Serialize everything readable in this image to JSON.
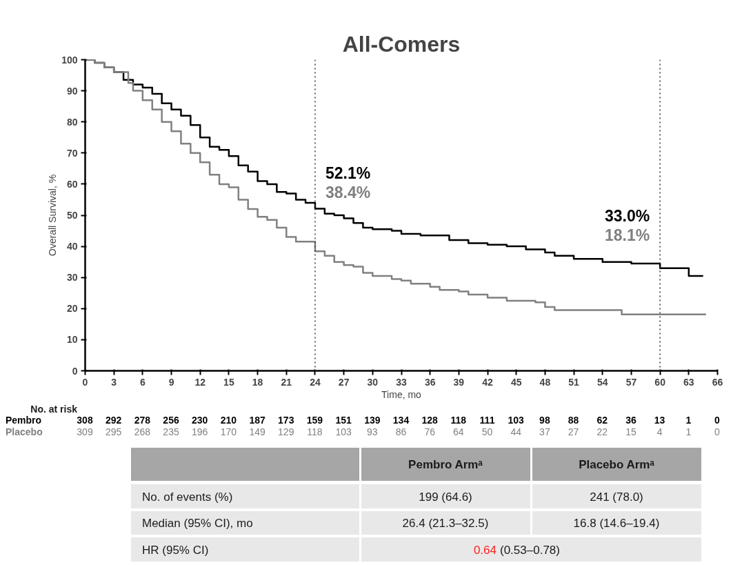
{
  "chart_data": {
    "type": "step",
    "title": "All-Comers",
    "xlabel": "Time, mo",
    "ylabel": "Overall Survival, %",
    "xlim": [
      0,
      66
    ],
    "xticks": [
      0,
      3,
      6,
      9,
      12,
      15,
      18,
      21,
      24,
      27,
      30,
      33,
      36,
      39,
      42,
      45,
      48,
      51,
      54,
      57,
      60,
      63,
      66
    ],
    "ylim": [
      0,
      100
    ],
    "yticks": [
      0,
      10,
      20,
      30,
      40,
      50,
      60,
      70,
      80,
      90,
      100
    ],
    "grid": false,
    "line_style": "solid",
    "marker": "none",
    "series": [
      {
        "name": "Pembro",
        "color": "#000000",
        "x": [
          0,
          1,
          2,
          3,
          4,
          5,
          6,
          7,
          8,
          9,
          10,
          11,
          12,
          13,
          14,
          15,
          16,
          17,
          18,
          19,
          20,
          21,
          22,
          23,
          24,
          25,
          26,
          27,
          28,
          29,
          30,
          32,
          33,
          35,
          37,
          38,
          40,
          42,
          44,
          46,
          48,
          49,
          51,
          54,
          57,
          60,
          63,
          64.5
        ],
        "values": [
          100,
          99,
          97.5,
          96,
          93.5,
          92,
          91,
          89,
          86,
          84,
          82,
          79,
          75,
          72,
          71,
          69,
          66,
          64,
          61,
          60,
          57.5,
          57,
          55,
          54,
          52.1,
          50.5,
          50,
          49,
          47.5,
          46,
          45.5,
          45,
          44,
          43.5,
          43.5,
          42,
          41,
          40.5,
          40,
          39,
          38,
          37,
          36,
          35,
          34.5,
          33.0,
          30.5,
          30.5
        ]
      },
      {
        "name": "Placebo",
        "color": "#808080",
        "x": [
          0,
          1,
          2,
          3,
          4.5,
          5,
          6,
          7,
          8,
          9,
          10,
          11,
          12,
          13,
          14,
          15,
          16,
          17,
          18,
          19,
          20,
          21,
          22,
          24,
          25,
          26,
          27,
          28,
          29,
          30,
          32,
          33,
          34,
          36,
          37,
          39,
          40,
          42,
          44,
          47,
          48,
          49,
          56,
          60,
          64.8
        ],
        "values": [
          100,
          99,
          97.5,
          96,
          92.5,
          90,
          87,
          84,
          80,
          77,
          73,
          70,
          67,
          63,
          60,
          59,
          55,
          52,
          49.5,
          48.5,
          46,
          43,
          41.5,
          38.4,
          37,
          35,
          34,
          33.5,
          31.5,
          30.5,
          29.5,
          29,
          28,
          27,
          26,
          25.5,
          24.5,
          23.5,
          22.5,
          22,
          20.5,
          19.5,
          18.1,
          18.1,
          18.1
        ]
      }
    ],
    "ref_lines": [
      {
        "axis": "x",
        "value": 24,
        "line_style": "dotted",
        "color": "#333333"
      },
      {
        "axis": "x",
        "value": 60,
        "line_style": "dotted",
        "color": "#333333"
      }
    ],
    "annotations": [
      "52.1%",
      "38.4%",
      "33.0%",
      "18.1%",
      "No. at risk",
      "308 292 278 256 230 210 187 173 159 151 139 134 128 118 111 103 98 88 62 36 13 1 0",
      "309 295 268 235 196 170 149 129 118 103 93 86 76 64 50 44 37 27 22 15 4 1 0",
      "Pembro Armᵃ",
      "Placebo Armᵃ",
      "No. of events (%)",
      "199 (64.6)",
      "241 (78.0)",
      "Median (95% CI), mo",
      "26.4 (21.3–32.5)",
      "16.8 (14.6–19.4)",
      "HR (95% CI)",
      "0.64",
      "(0.53–0.78)"
    ]
  }
}
